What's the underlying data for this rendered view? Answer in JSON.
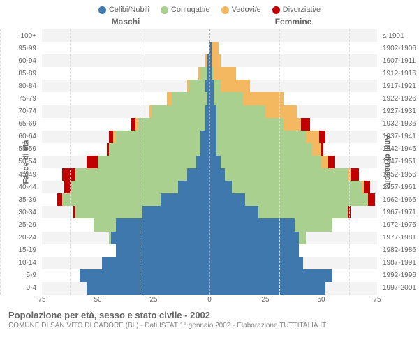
{
  "legend": {
    "items": [
      {
        "label": "Celibi/Nubili",
        "color": "#3f78ad"
      },
      {
        "label": "Coniugati/e",
        "color": "#a9d08e"
      },
      {
        "label": "Vedovi/e",
        "color": "#f4b860"
      },
      {
        "label": "Divorziati/e",
        "color": "#c00000"
      }
    ]
  },
  "headers": {
    "left": "Maschi",
    "right": "Femmine"
  },
  "axis_labels": {
    "left": "Fasce di età",
    "right": "Anni di nascita"
  },
  "max": 75,
  "xticks": [
    75,
    50,
    25,
    0,
    25,
    50,
    75
  ],
  "colors": {
    "single": "#3f78ad",
    "married": "#a9d08e",
    "widowed": "#f4b860",
    "divorced": "#c00000",
    "row_alt": "#f3f3f3",
    "grid": "#dddddd",
    "centerline": "#aaaaaa",
    "text": "#666666"
  },
  "typography": {
    "legend_fontsize": 11,
    "label_fontsize": 10,
    "title_fontsize": 13
  },
  "rows": [
    {
      "age": "100+",
      "birth": "≤ 1901",
      "m": [
        0,
        0,
        0,
        0
      ],
      "f": [
        0,
        0,
        0,
        0
      ]
    },
    {
      "age": "95-99",
      "birth": "1902-1906",
      "m": [
        0,
        0,
        0,
        0
      ],
      "f": [
        1,
        0,
        3,
        0
      ]
    },
    {
      "age": "90-94",
      "birth": "1907-1911",
      "m": [
        1,
        0,
        1,
        0
      ],
      "f": [
        1,
        0,
        4,
        0
      ]
    },
    {
      "age": "85-89",
      "birth": "1912-1916",
      "m": [
        1,
        3,
        1,
        0
      ],
      "f": [
        1,
        1,
        10,
        0
      ]
    },
    {
      "age": "80-84",
      "birth": "1917-1921",
      "m": [
        2,
        7,
        1,
        0
      ],
      "f": [
        2,
        3,
        13,
        0
      ]
    },
    {
      "age": "75-79",
      "birth": "1922-1926",
      "m": [
        1,
        16,
        2,
        0
      ],
      "f": [
        2,
        13,
        18,
        0
      ]
    },
    {
      "age": "70-74",
      "birth": "1927-1931",
      "m": [
        2,
        24,
        1,
        0
      ],
      "f": [
        3,
        22,
        14,
        0
      ]
    },
    {
      "age": "65-69",
      "birth": "1932-1936",
      "m": [
        2,
        30,
        1,
        2
      ],
      "f": [
        3,
        30,
        8,
        4
      ]
    },
    {
      "age": "60-64",
      "birth": "1937-1941",
      "m": [
        4,
        38,
        1,
        2
      ],
      "f": [
        3,
        40,
        6,
        3
      ]
    },
    {
      "age": "55-59",
      "birth": "1942-1946",
      "m": [
        4,
        41,
        0,
        1
      ],
      "f": [
        3,
        43,
        4,
        1
      ]
    },
    {
      "age": "50-54",
      "birth": "1947-1951",
      "m": [
        6,
        44,
        0,
        5
      ],
      "f": [
        5,
        45,
        3,
        3
      ]
    },
    {
      "age": "45-49",
      "birth": "1952-1956",
      "m": [
        10,
        50,
        0,
        6
      ],
      "f": [
        7,
        55,
        1,
        4
      ]
    },
    {
      "age": "40-44",
      "birth": "1957-1961",
      "m": [
        14,
        48,
        0,
        3
      ],
      "f": [
        10,
        58,
        1,
        3
      ]
    },
    {
      "age": "35-39",
      "birth": "1962-1966",
      "m": [
        22,
        44,
        0,
        2
      ],
      "f": [
        16,
        55,
        0,
        3
      ]
    },
    {
      "age": "30-34",
      "birth": "1967-1971",
      "m": [
        30,
        30,
        0,
        1
      ],
      "f": [
        22,
        40,
        0,
        1
      ]
    },
    {
      "age": "25-29",
      "birth": "1972-1976",
      "m": [
        42,
        10,
        0,
        0
      ],
      "f": [
        38,
        17,
        0,
        0
      ]
    },
    {
      "age": "20-24",
      "birth": "1977-1981",
      "m": [
        44,
        1,
        0,
        0
      ],
      "f": [
        40,
        3,
        0,
        0
      ]
    },
    {
      "age": "15-19",
      "birth": "1982-1986",
      "m": [
        42,
        0,
        0,
        0
      ],
      "f": [
        40,
        0,
        0,
        0
      ]
    },
    {
      "age": "10-14",
      "birth": "1987-1991",
      "m": [
        48,
        0,
        0,
        0
      ],
      "f": [
        42,
        0,
        0,
        0
      ]
    },
    {
      "age": "5-9",
      "birth": "1992-1996",
      "m": [
        58,
        0,
        0,
        0
      ],
      "f": [
        55,
        0,
        0,
        0
      ]
    },
    {
      "age": "0-4",
      "birth": "1997-2001",
      "m": [
        55,
        0,
        0,
        0
      ],
      "f": [
        52,
        0,
        0,
        0
      ]
    }
  ],
  "footer": {
    "title": "Popolazione per età, sesso e stato civile - 2002",
    "subtitle": "COMUNE DI SAN VITO DI CADORE (BL) - Dati ISTAT 1° gennaio 2002 - Elaborazione TUTTITALIA.IT"
  }
}
